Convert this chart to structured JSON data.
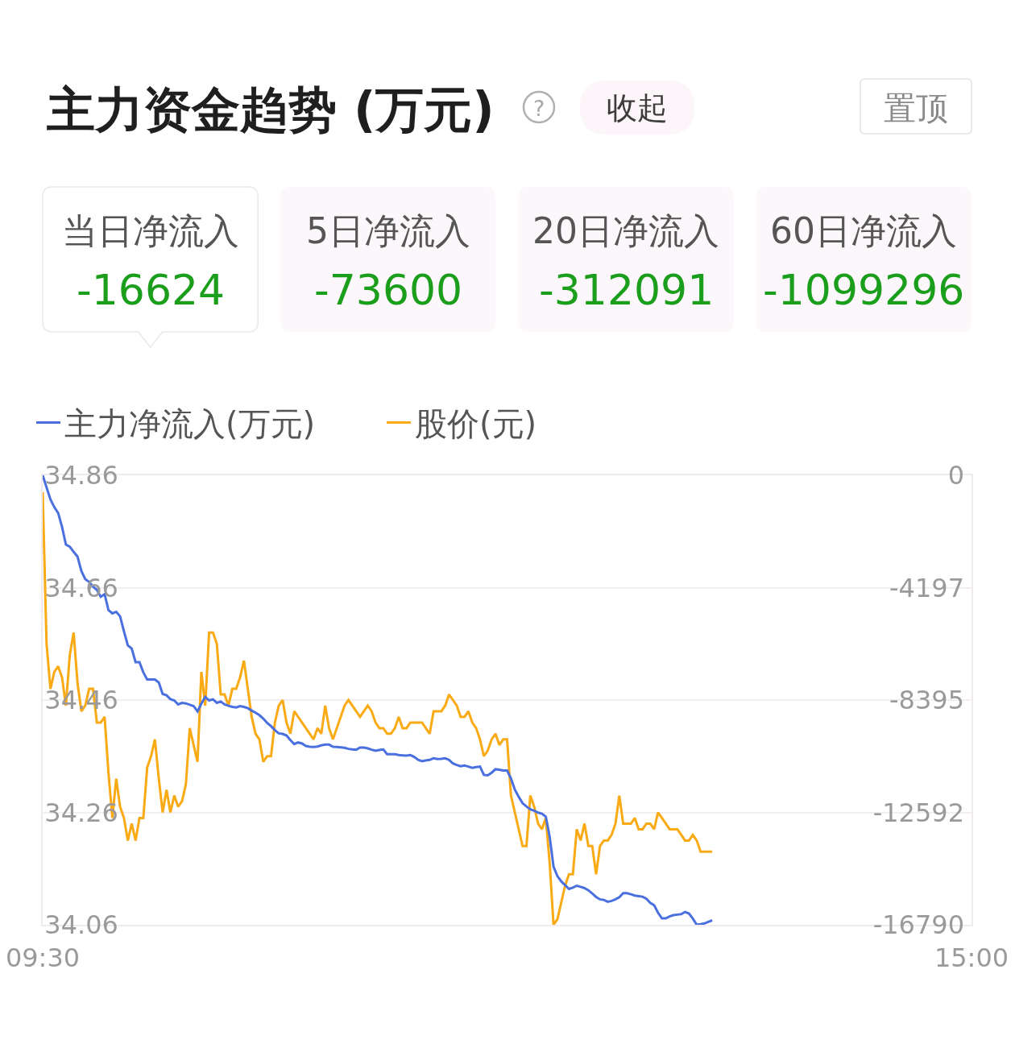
{
  "chart_data": [
    {
      "type": "other",
      "title": "主力资金趋势 (万元)",
      "annotations": [
        "?",
        "收起",
        "置顶"
      ],
      "categories": [
        "当日净流入",
        "5日净流入",
        "20日净流入",
        "60日净流入"
      ],
      "values": [
        -16624,
        -73600,
        -312091,
        -1099296
      ],
      "colors": [
        "#ffffff",
        "#fcf7fb",
        "#fcf7fb",
        "#fcf7fb"
      ],
      "data_labels": true
    },
    {
      "type": "line",
      "legend": "top left",
      "grid": "y",
      "marker": "none",
      "line_style": "solid",
      "categories": [
        "09:30",
        null,
        null,
        null,
        null,
        null,
        null,
        null,
        null,
        null,
        null,
        null,
        null,
        null,
        null,
        null,
        null,
        null,
        null,
        null,
        null,
        null,
        null,
        null,
        null,
        null,
        null,
        null,
        null,
        null,
        null,
        null,
        null,
        null,
        null,
        null,
        null,
        null,
        null,
        null,
        null,
        null,
        null,
        null,
        null,
        null,
        null,
        null,
        null,
        null,
        null,
        null,
        null,
        null,
        null,
        null,
        null,
        null,
        null,
        null,
        null,
        null,
        null,
        null,
        null,
        null,
        null,
        null,
        null,
        null,
        null,
        null,
        null,
        null,
        null,
        null,
        null,
        null,
        null,
        null,
        null,
        null,
        null,
        null,
        null,
        null,
        null,
        null,
        null,
        null,
        null,
        null,
        null,
        null,
        null,
        null,
        null,
        null,
        null,
        null,
        null,
        null,
        null,
        null,
        null,
        null,
        null,
        null,
        null,
        null,
        null,
        null,
        null,
        null,
        null,
        null,
        null,
        null,
        null,
        null,
        null,
        null,
        null,
        null,
        null,
        null,
        null,
        null,
        null,
        null,
        null,
        null,
        null,
        null,
        null,
        null,
        null,
        null,
        null,
        null,
        null,
        null,
        null,
        null,
        null,
        null,
        null,
        null,
        null,
        null,
        null,
        null,
        null,
        null,
        null,
        null,
        null,
        null,
        null,
        null,
        null,
        null,
        null,
        null,
        null,
        null,
        null,
        null,
        null,
        null,
        null,
        null,
        null,
        null,
        null,
        null,
        null,
        null,
        null,
        null,
        null,
        null,
        null,
        null,
        null,
        null,
        null,
        null,
        null,
        null,
        null,
        null,
        null,
        null,
        null,
        null,
        null,
        null,
        null,
        null,
        null,
        null,
        null,
        null,
        null,
        null,
        null,
        null,
        null,
        null,
        null,
        null,
        null,
        null,
        null,
        null,
        null,
        null,
        null,
        null,
        null,
        null,
        null,
        null,
        null,
        null,
        null,
        null,
        null,
        null,
        null,
        null,
        null,
        null,
        null,
        null,
        null,
        null,
        null,
        null,
        "15:00"
      ],
      "ylim": [
        34.06,
        34.86
      ],
      "yticks": [
        34.06,
        34.26,
        34.46,
        34.66,
        34.86
      ],
      "y2lim": [
        -16790,
        0
      ],
      "y2ticks": [
        -16790,
        -12592,
        -8395,
        -4197,
        0
      ],
      "series": [
        {
          "name": "主力净流入(万元)",
          "color": "#4a70e0",
          "axis": "y2",
          "values": [
            0,
            -450,
            -900,
            -1190,
            -1410,
            -1930,
            -2590,
            -2670,
            -2860,
            -3040,
            -3580,
            -3880,
            -3980,
            -4160,
            -4280,
            -4540,
            -4440,
            -5040,
            -5160,
            -5100,
            -5270,
            -5830,
            -6350,
            -6470,
            -6980,
            -6980,
            -7360,
            -7630,
            -7630,
            -7630,
            -7740,
            -8170,
            -8220,
            -8360,
            -8410,
            -8560,
            -8500,
            -8520,
            -8570,
            -8620,
            -8820,
            -8530,
            -8280,
            -8410,
            -8370,
            -8500,
            -8450,
            -8560,
            -8610,
            -8650,
            -8670,
            -8620,
            -8650,
            -8700,
            -8790,
            -8870,
            -8960,
            -9090,
            -9250,
            -9370,
            -9520,
            -9640,
            -9660,
            -9720,
            -9890,
            -10040,
            -9980,
            -10020,
            -10110,
            -10140,
            -10150,
            -10130,
            -10090,
            -10060,
            -10060,
            -10140,
            -10150,
            -10160,
            -10180,
            -10220,
            -10240,
            -10250,
            -10170,
            -10170,
            -10200,
            -10250,
            -10290,
            -10260,
            -10240,
            -10420,
            -10420,
            -10420,
            -10450,
            -10460,
            -10470,
            -10450,
            -10520,
            -10630,
            -10680,
            -10650,
            -10630,
            -10570,
            -10600,
            -10590,
            -10570,
            -10630,
            -10760,
            -10820,
            -10870,
            -10840,
            -10880,
            -10930,
            -10900,
            -10880,
            -11190,
            -11210,
            -11110,
            -10980,
            -11000,
            -11030,
            -11030,
            -11320,
            -11740,
            -12010,
            -12250,
            -12370,
            -12480,
            -12530,
            -12600,
            -12640,
            -12750,
            -13500,
            -14620,
            -14970,
            -15170,
            -15310,
            -15450,
            -15400,
            -15330,
            -15370,
            -15420,
            -15500,
            -15620,
            -15750,
            -15840,
            -15860,
            -15930,
            -15900,
            -15840,
            -15760,
            -15610,
            -15610,
            -15650,
            -15700,
            -15720,
            -15740,
            -15820,
            -15970,
            -16060,
            -16340,
            -16550,
            -16550,
            -16480,
            -16430,
            -16410,
            -16390,
            -16310,
            -16370,
            -16560,
            -16790,
            -16770,
            -16740,
            -16680,
            -16624,
            null,
            null,
            null,
            null,
            null,
            null,
            null,
            null,
            null,
            null,
            null,
            null,
            null,
            null,
            null,
            null,
            null,
            null,
            null,
            null,
            null,
            null,
            null,
            null,
            null,
            null,
            null,
            null,
            null,
            null,
            null,
            null,
            null,
            null,
            null,
            null,
            null,
            null,
            null,
            null,
            null,
            null,
            null,
            null,
            null,
            null,
            null,
            null,
            null,
            null,
            null,
            null,
            null,
            null,
            null,
            null,
            null,
            null,
            null,
            null,
            null,
            null,
            null,
            null,
            null,
            null,
            null
          ]
        },
        {
          "name": "股价(元)",
          "color": "#f9aa14",
          "values": [
            34.83,
            34.56,
            34.48,
            34.51,
            34.52,
            34.5,
            34.45,
            34.54,
            34.58,
            34.49,
            34.44,
            34.45,
            34.48,
            34.48,
            34.42,
            34.42,
            34.43,
            34.33,
            34.25,
            34.32,
            34.27,
            34.25,
            34.21,
            34.24,
            34.21,
            34.25,
            34.25,
            34.34,
            34.36,
            34.39,
            34.32,
            34.26,
            34.3,
            34.26,
            34.29,
            34.27,
            34.28,
            34.31,
            34.41,
            34.38,
            34.35,
            34.51,
            34.45,
            34.58,
            34.58,
            34.56,
            34.47,
            34.47,
            34.45,
            34.48,
            34.48,
            34.5,
            34.53,
            34.48,
            34.43,
            34.4,
            34.39,
            34.35,
            34.36,
            34.36,
            34.42,
            34.45,
            34.46,
            34.42,
            34.4,
            34.44,
            34.43,
            34.42,
            34.41,
            34.4,
            34.39,
            34.41,
            34.4,
            34.45,
            34.41,
            34.39,
            34.41,
            34.43,
            34.45,
            34.46,
            34.45,
            34.44,
            34.43,
            34.44,
            34.45,
            34.44,
            34.42,
            34.41,
            34.41,
            34.4,
            34.4,
            34.41,
            34.43,
            34.41,
            34.41,
            34.42,
            34.42,
            34.42,
            34.42,
            34.41,
            34.4,
            34.44,
            34.44,
            34.44,
            34.45,
            34.47,
            34.46,
            34.45,
            34.43,
            34.43,
            34.44,
            34.42,
            34.41,
            34.39,
            34.36,
            34.37,
            34.39,
            34.4,
            34.38,
            34.39,
            34.39,
            34.29,
            34.26,
            34.23,
            34.2,
            34.2,
            34.29,
            34.27,
            34.24,
            34.23,
            34.25,
            34.17,
            34.06,
            34.07,
            34.1,
            34.13,
            34.15,
            34.15,
            34.23,
            34.21,
            34.24,
            34.2,
            34.2,
            34.15,
            34.2,
            34.21,
            34.21,
            34.22,
            34.24,
            34.29,
            34.24,
            34.24,
            34.24,
            34.25,
            34.23,
            34.23,
            34.24,
            34.24,
            34.23,
            34.26,
            34.25,
            34.24,
            34.23,
            34.23,
            34.23,
            34.22,
            34.21,
            34.21,
            34.22,
            34.21,
            34.19,
            34.19,
            34.19,
            34.19,
            null,
            null,
            null,
            null,
            null,
            null,
            null,
            null,
            null,
            null,
            null,
            null,
            null,
            null,
            null,
            null,
            null,
            null,
            null,
            null,
            null,
            null,
            null,
            null,
            null,
            null,
            null,
            null,
            null,
            null,
            null,
            null,
            null,
            null,
            null,
            null,
            null,
            null,
            null,
            null,
            null,
            null,
            null,
            null,
            null,
            null,
            null,
            null,
            null,
            null,
            null,
            null,
            null,
            null,
            null,
            null,
            null,
            null,
            null,
            null,
            null,
            null,
            null,
            null,
            null,
            null,
            null
          ]
        }
      ]
    }
  ]
}
